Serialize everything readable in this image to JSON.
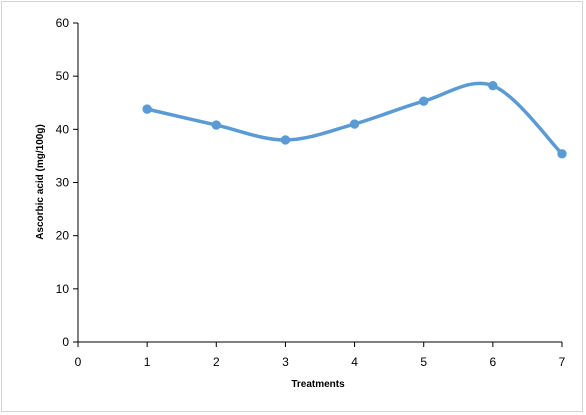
{
  "chart_data": {
    "type": "line",
    "title": "",
    "xlabel": "Treatments",
    "ylabel": "Ascorbic acid  (mg/100g)",
    "x": [
      1,
      2,
      3,
      4,
      5,
      6,
      7
    ],
    "series": [
      {
        "values": [
          43.8,
          40.8,
          38.0,
          41.0,
          45.3,
          48.2,
          35.4
        ]
      }
    ],
    "xlim": [
      0,
      7
    ],
    "ylim": [
      0,
      60
    ],
    "xticks": [
      0,
      1,
      2,
      3,
      4,
      5,
      6,
      7
    ],
    "yticks": [
      0,
      10,
      20,
      30,
      40,
      50,
      60
    ],
    "grid": false,
    "legend": "none",
    "smooth": true,
    "colors": {
      "line": "#5b9bd5",
      "axis": "#000000",
      "frame": "#d4d4d4"
    }
  }
}
